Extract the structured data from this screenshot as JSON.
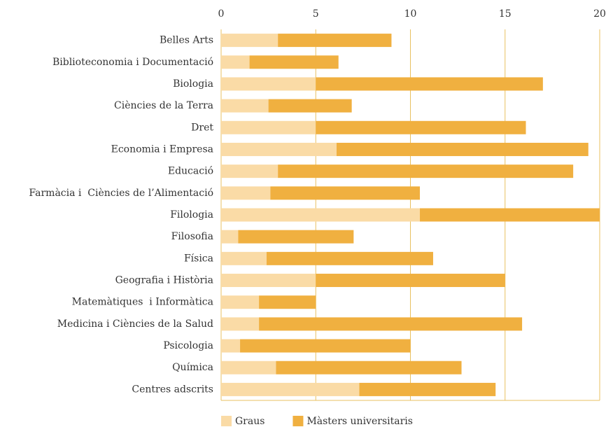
{
  "chart_data": {
    "type": "stacked-barh",
    "categories": [
      "Belles Arts",
      "Biblioteconomia i Documentació",
      "Biologia",
      "Ciències de la Terra",
      "Dret",
      "Economia i Empresa",
      "Educació",
      "Farmàcia i  Ciències de l’Alimentació",
      "Filologia",
      "Filosofia",
      "Física",
      "Geografia i Història",
      "Matemàtiques  i Informàtica",
      "Medicina i Ciències de la Salud",
      "Psicologia",
      "Química",
      "Centres adscrits"
    ],
    "series": [
      {
        "name": "Graus",
        "color": "#fadba6",
        "values": [
          3.0,
          1.5,
          5.0,
          2.5,
          5.0,
          6.1,
          3.0,
          2.6,
          10.5,
          0.9,
          2.4,
          5.0,
          2.0,
          2.0,
          1.0,
          2.9,
          7.3
        ]
      },
      {
        "name": "Màsters universitaris",
        "color": "#f0b040",
        "values": [
          6.0,
          4.7,
          12.0,
          4.4,
          11.1,
          13.3,
          15.6,
          7.9,
          9.5,
          6.1,
          8.8,
          10.0,
          3.0,
          13.9,
          9.0,
          9.8,
          7.2
        ]
      }
    ],
    "xlim": [
      0,
      20
    ],
    "xticks": [
      0,
      5,
      10,
      15,
      20
    ],
    "grid": true,
    "legend": "bottom"
  }
}
